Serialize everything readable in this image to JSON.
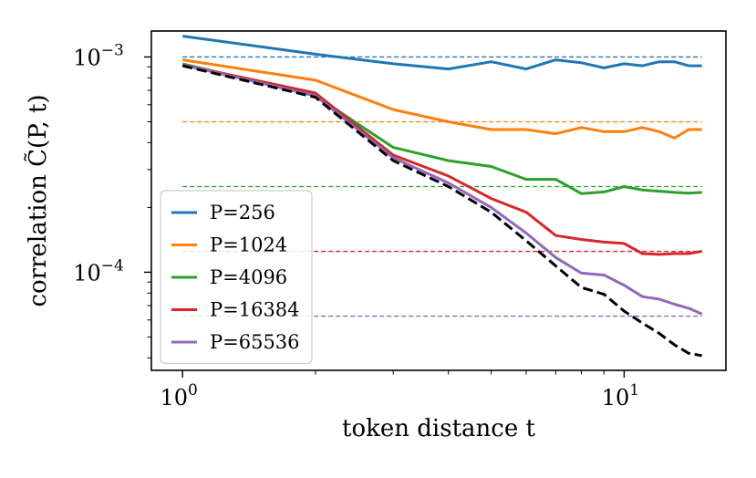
{
  "chart_data": {
    "type": "line",
    "xscale": "log",
    "yscale": "log",
    "xlabel": "token distance t",
    "ylabel": "correlation C̃(P, t)",
    "xlim": [
      0.85,
      17
    ],
    "ylim": [
      3.5e-05,
      0.00132
    ],
    "x_ticks": [
      {
        "value": 1,
        "base": "10",
        "exp": "0"
      },
      {
        "value": 10,
        "base": "10",
        "exp": "1"
      }
    ],
    "y_ticks": [
      {
        "value": 0.0001,
        "base": "10",
        "exp": "−4"
      },
      {
        "value": 0.001,
        "base": "10",
        "exp": "−3"
      }
    ],
    "x": [
      1,
      2,
      3,
      4,
      5,
      6,
      7,
      8,
      9,
      10,
      11,
      12,
      13,
      14,
      15
    ],
    "series": [
      {
        "name": "P=256",
        "color": "#1f77b4",
        "values": [
          0.00125,
          0.00103,
          0.00093,
          0.00088,
          0.00095,
          0.00088,
          0.00097,
          0.00094,
          0.00089,
          0.00093,
          0.00091,
          0.00095,
          0.00095,
          0.00091,
          0.00091
        ],
        "plateau": 0.001
      },
      {
        "name": "P=1024",
        "color": "#ff7f0e",
        "values": [
          0.00097,
          0.00078,
          0.00057,
          0.0005,
          0.00046,
          0.00046,
          0.00044,
          0.00047,
          0.00045,
          0.00045,
          0.00047,
          0.00045,
          0.00042,
          0.00046,
          0.00046
        ],
        "plateau": 0.0005
      },
      {
        "name": "P=4096",
        "color": "#2ca02c",
        "values": [
          0.00093,
          0.00066,
          0.00038,
          0.00033,
          0.00031,
          0.00027,
          0.00027,
          0.000232,
          0.000236,
          0.00025,
          0.000241,
          0.000238,
          0.000235,
          0.000233,
          0.000235
        ],
        "plateau": 0.00025
      },
      {
        "name": "P=16384",
        "color": "#d62728",
        "values": [
          0.00092,
          0.00068,
          0.00035,
          0.00028,
          0.00022,
          0.00019,
          0.000148,
          0.000142,
          0.000138,
          0.000136,
          0.000122,
          0.000121,
          0.000122,
          0.000122,
          0.000125
        ],
        "plateau": 0.000125
      },
      {
        "name": "P=65536",
        "color": "#9467bd",
        "values": [
          0.00092,
          0.00066,
          0.00034,
          0.00026,
          0.0002,
          0.000152,
          0.000117,
          9.9e-05,
          9.7e-05,
          8.7e-05,
          7.7e-05,
          7.5e-05,
          7.1e-05,
          6.8e-05,
          6.4e-05
        ],
        "plateau": 6.25e-05
      }
    ],
    "reference": {
      "color": "#000000",
      "style": "dashed",
      "values": [
        0.00091,
        0.00065,
        0.00033,
        0.00025,
        0.00019,
        0.00014,
        0.000107,
        8.5e-05,
        7.9e-05,
        6.6e-05,
        5.8e-05,
        5.2e-05,
        4.6e-05,
        4.2e-05,
        4.1e-05
      ]
    },
    "legend": {
      "placement": "lower-left"
    },
    "grid": false
  }
}
